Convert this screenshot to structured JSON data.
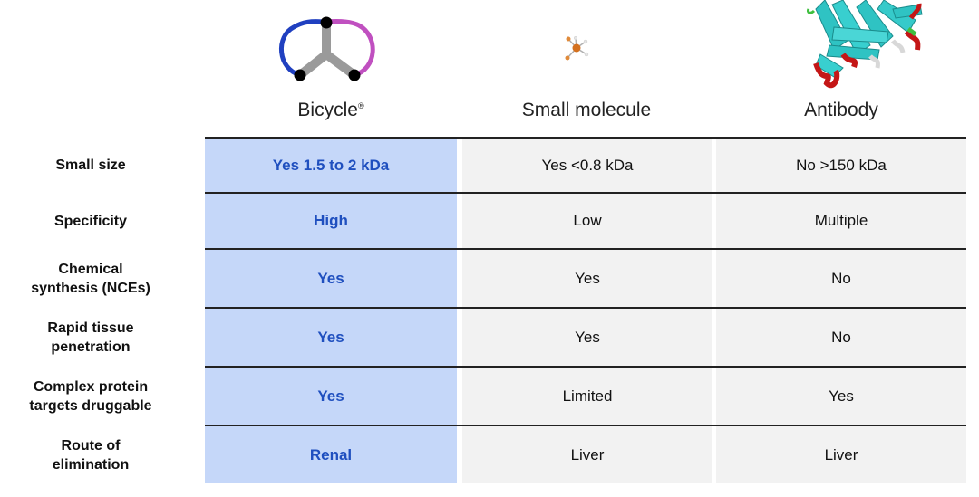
{
  "columns": [
    {
      "title": "Bicycle",
      "sup": "®"
    },
    {
      "title": "Small molecule",
      "sup": ""
    },
    {
      "title": "Antibody",
      "sup": ""
    }
  ],
  "rows": [
    {
      "label": "Small size",
      "values": [
        "Yes  1.5 to 2 kDa",
        "Yes  <0.8 kDa",
        "No  >150 kDa"
      ]
    },
    {
      "label": "Specificity",
      "values": [
        "High",
        "Low",
        "Multiple"
      ]
    },
    {
      "label": "Chemical\nsynthesis (NCEs)",
      "values": [
        "Yes",
        "Yes",
        "No"
      ]
    },
    {
      "label": "Rapid tissue\npenetration",
      "values": [
        "Yes",
        "Yes",
        "No"
      ]
    },
    {
      "label": "Complex protein\ntargets druggable",
      "values": [
        "Yes",
        "Limited",
        "Yes"
      ]
    },
    {
      "label": "Route of\nelimination",
      "values": [
        "Renal",
        "Liver",
        "Liver"
      ]
    }
  ],
  "colors": {
    "bicycle": "#c5d7f9",
    "bicycle_text": "#1f4fbf",
    "grey": "#f2f2f2"
  },
  "icons": [
    "bicycle-icon",
    "small-molecule-icon",
    "antibody-icon"
  ]
}
